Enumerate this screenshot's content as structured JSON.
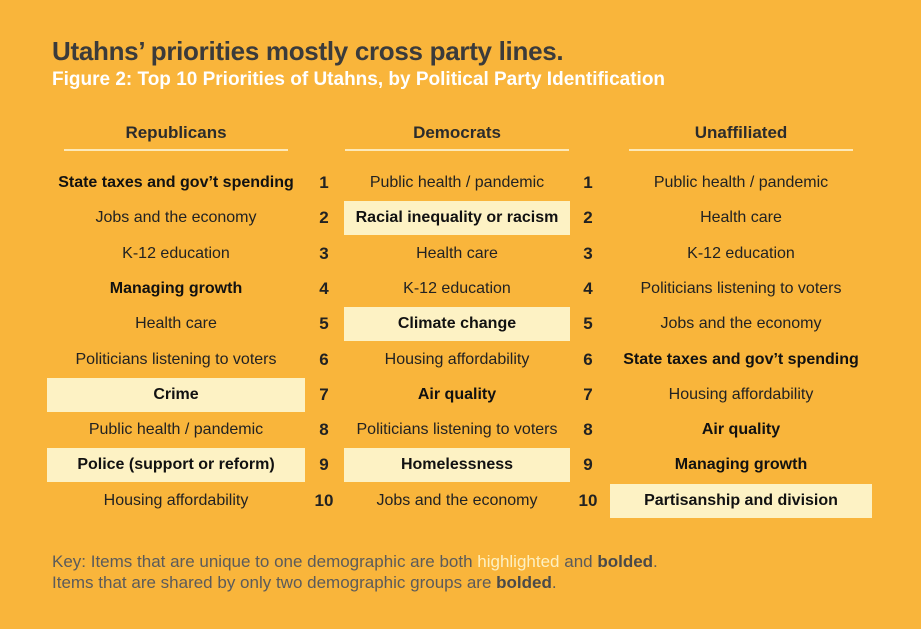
{
  "header": {
    "title": "Utahns’ priorities mostly cross party lines.",
    "subtitle": "Figure 2: Top 10 Priorities of Utahns, by Political Party Identification"
  },
  "table": {
    "ranks": [
      1,
      2,
      3,
      4,
      5,
      6,
      7,
      8,
      9,
      10
    ],
    "columns": [
      {
        "name": "Republicans",
        "items": [
          {
            "text": "State taxes and gov’t spending",
            "style": "bold"
          },
          {
            "text": "Jobs and the economy",
            "style": "plain"
          },
          {
            "text": "K-12 education",
            "style": "plain"
          },
          {
            "text": "Managing growth",
            "style": "bold"
          },
          {
            "text": "Health care",
            "style": "plain"
          },
          {
            "text": "Politicians listening to voters",
            "style": "plain"
          },
          {
            "text": "Crime",
            "style": "highlight"
          },
          {
            "text": "Public health / pandemic",
            "style": "plain"
          },
          {
            "text": "Police (support or reform)",
            "style": "highlight"
          },
          {
            "text": "Housing affordability",
            "style": "plain"
          }
        ]
      },
      {
        "name": "Democrats",
        "items": [
          {
            "text": "Public health / pandemic",
            "style": "plain"
          },
          {
            "text": "Racial inequality or racism",
            "style": "highlight"
          },
          {
            "text": "Health care",
            "style": "plain"
          },
          {
            "text": "K-12 education",
            "style": "plain"
          },
          {
            "text": "Climate change",
            "style": "highlight"
          },
          {
            "text": "Housing affordability",
            "style": "plain"
          },
          {
            "text": "Air quality",
            "style": "bold"
          },
          {
            "text": "Politicians listening to voters",
            "style": "plain"
          },
          {
            "text": "Homelessness",
            "style": "highlight"
          },
          {
            "text": "Jobs and the economy",
            "style": "plain"
          }
        ]
      },
      {
        "name": "Unaffiliated",
        "items": [
          {
            "text": "Public health / pandemic",
            "style": "plain"
          },
          {
            "text": "Health care",
            "style": "plain"
          },
          {
            "text": "K-12 education",
            "style": "plain"
          },
          {
            "text": "Politicians listening to voters",
            "style": "plain"
          },
          {
            "text": "Jobs and the economy",
            "style": "plain"
          },
          {
            "text": "State taxes and gov’t spending",
            "style": "bold"
          },
          {
            "text": "Housing affordability",
            "style": "plain"
          },
          {
            "text": "Air quality",
            "style": "bold"
          },
          {
            "text": "Managing growth",
            "style": "bold"
          },
          {
            "text": "Partisanship and division",
            "style": "highlight"
          }
        ]
      }
    ]
  },
  "key": {
    "lines": [
      [
        {
          "text": "Key: Items that are unique to one demographic are both ",
          "style": "plain"
        },
        {
          "text": "highlighted",
          "style": "light"
        },
        {
          "text": " and ",
          "style": "plain"
        },
        {
          "text": "bolded",
          "style": "bold"
        },
        {
          "text": ".",
          "style": "plain"
        }
      ],
      [
        {
          "text": "Items that are shared by only two demographic groups are ",
          "style": "plain"
        },
        {
          "text": "bolded",
          "style": "bold"
        },
        {
          "text": ".",
          "style": "plain"
        }
      ]
    ]
  }
}
